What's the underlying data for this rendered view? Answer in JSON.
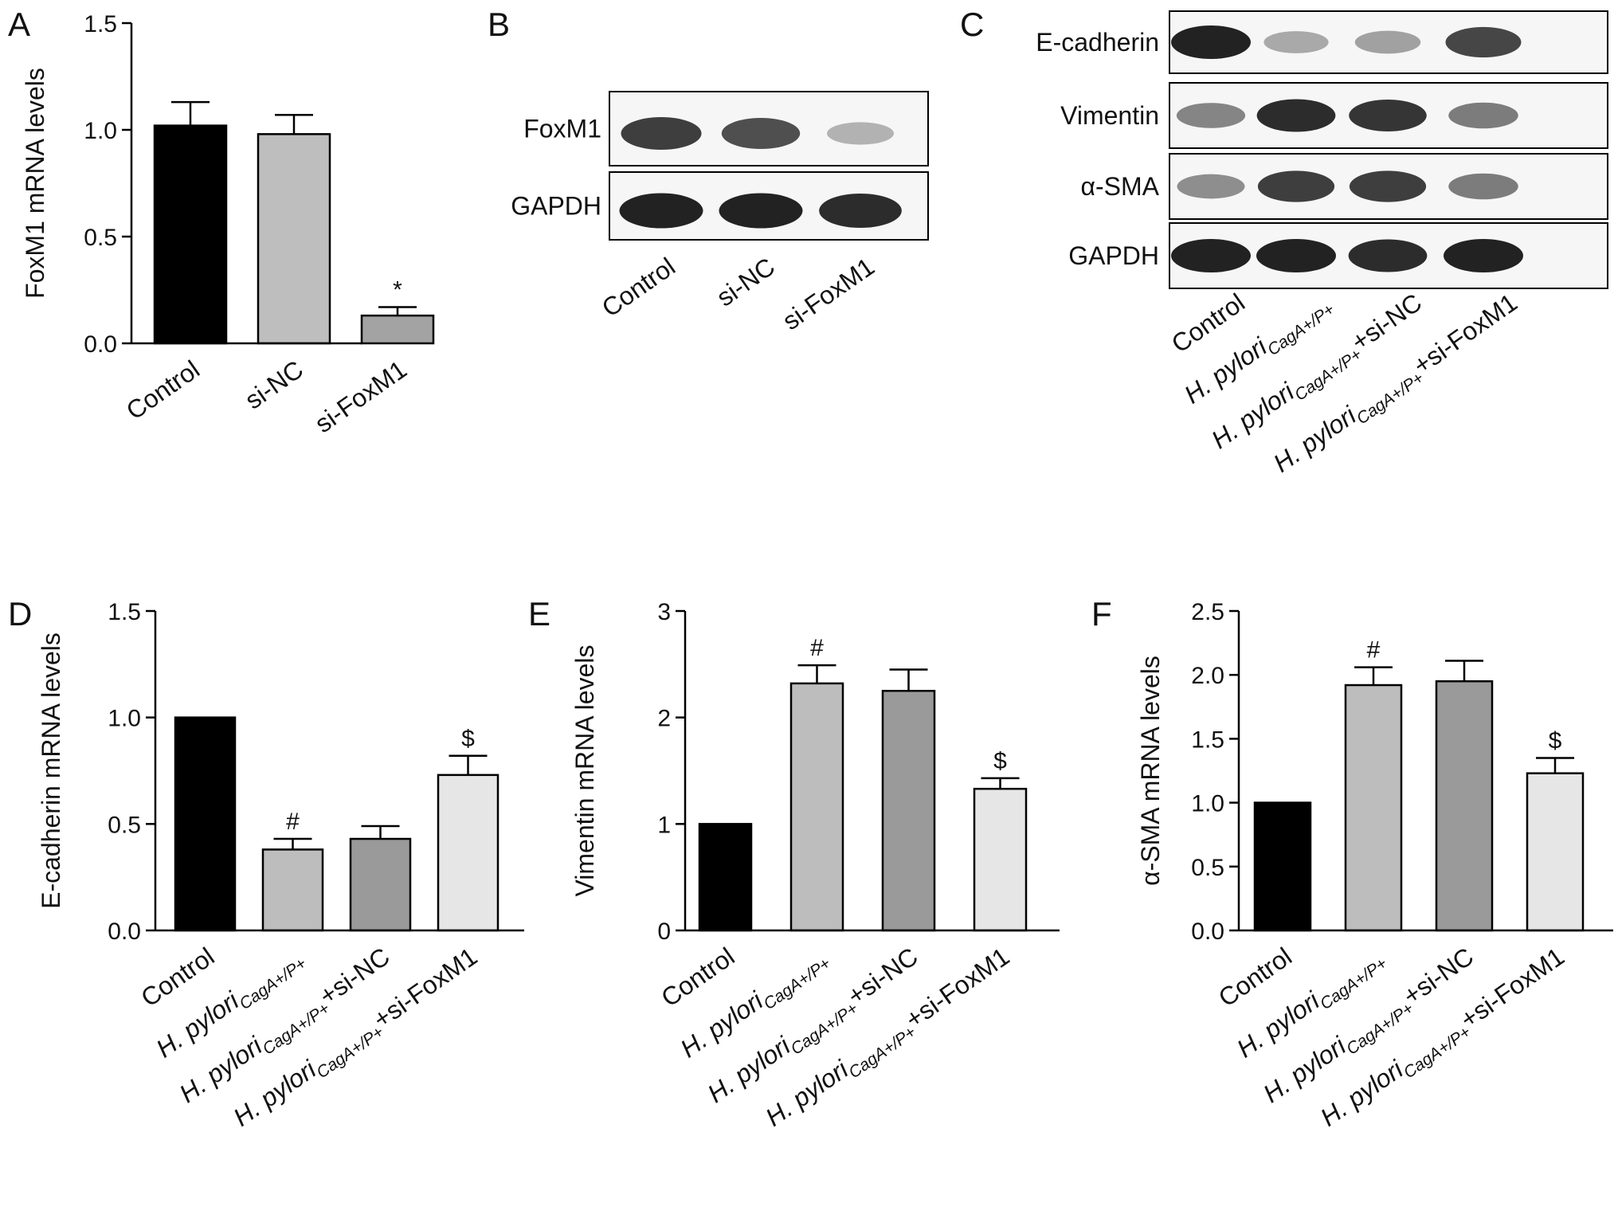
{
  "panel_letters": [
    "A",
    "B",
    "C",
    "D",
    "E",
    "F"
  ],
  "colors": {
    "control": "#000000",
    "group2": "#bdbdbd",
    "group3": "#9a9a9a",
    "group4": "#e6e6e6",
    "a_sinc": "#bebebe",
    "a_sifoxm1": "#a3a3a3",
    "band": "#222222"
  },
  "cat_labels": {
    "control": "Control",
    "si_nc": "si-NC",
    "si_foxm1": "si-FoxM1",
    "hpylori_main": "H. pylori",
    "hpylori_sub": "CagA+/P+",
    "plus_si_nc": "+si-NC",
    "plus_si_foxm1": "+si-FoxM1"
  },
  "blot_b": {
    "lanes": [
      "Control",
      "si-NC",
      "si-FoxM1"
    ],
    "rows": [
      {
        "label": "FoxM1",
        "intensity": [
          0.85,
          0.75,
          0.2
        ]
      },
      {
        "label": "GAPDH",
        "intensity": [
          1.0,
          1.0,
          0.95
        ]
      }
    ]
  },
  "blot_c": {
    "rows": [
      {
        "label": "E-cadherin",
        "intensity": [
          1.0,
          0.25,
          0.3,
          0.8
        ]
      },
      {
        "label": "Vimentin",
        "intensity": [
          0.45,
          0.95,
          0.9,
          0.5
        ]
      },
      {
        "label": "α-SMA",
        "intensity": [
          0.4,
          0.85,
          0.85,
          0.5
        ]
      },
      {
        "label": "GAPDH",
        "intensity": [
          1.0,
          1.0,
          0.95,
          1.0
        ]
      }
    ]
  },
  "chart_data": [
    {
      "panel": "A",
      "type": "bar",
      "ylabel": "FoxM1 mRNA levels",
      "ylim": [
        0,
        1.5
      ],
      "yticks": [
        "0.0",
        "0.5",
        "1.0",
        "1.5"
      ],
      "categories": [
        "Control",
        "si-NC",
        "si-FoxM1"
      ],
      "values": [
        1.02,
        0.98,
        0.13
      ],
      "errors": [
        0.11,
        0.09,
        0.04
      ],
      "annotations": [
        "",
        "",
        "*"
      ]
    },
    {
      "panel": "D",
      "type": "bar",
      "ylabel": "E-cadherin mRNA levels",
      "ylim": [
        0,
        1.5
      ],
      "yticks": [
        "0.0",
        "0.5",
        "1.0",
        "1.5"
      ],
      "categories": [
        "Control",
        "H. pylori CagA+/P+",
        "H. pylori CagA+/P+ +si-NC",
        "H. pylori CagA+/P+ +si-FoxM1"
      ],
      "values": [
        1.0,
        0.38,
        0.43,
        0.73
      ],
      "errors": [
        0,
        0.05,
        0.06,
        0.09
      ],
      "annotations": [
        "",
        "#",
        "",
        "$"
      ]
    },
    {
      "panel": "E",
      "type": "bar",
      "ylabel": "Vimentin mRNA levels",
      "ylim": [
        0,
        3
      ],
      "yticks": [
        "0",
        "1",
        "2",
        "3"
      ],
      "categories": [
        "Control",
        "H. pylori CagA+/P+",
        "H. pylori CagA+/P+ +si-NC",
        "H. pylori CagA+/P+ +si-FoxM1"
      ],
      "values": [
        1.0,
        2.32,
        2.25,
        1.33
      ],
      "errors": [
        0,
        0.17,
        0.2,
        0.1
      ],
      "annotations": [
        "",
        "#",
        "",
        "$"
      ]
    },
    {
      "panel": "F",
      "type": "bar",
      "ylabel": "α-SMA mRNA levels",
      "ylim": [
        0,
        2.5
      ],
      "yticks": [
        "0.0",
        "0.5",
        "1.0",
        "1.5",
        "2.0",
        "2.5"
      ],
      "categories": [
        "Control",
        "H. pylori CagA+/P+",
        "H. pylori CagA+/P+ +si-NC",
        "H. pylori CagA+/P+ +si-FoxM1"
      ],
      "values": [
        1.0,
        1.92,
        1.95,
        1.23
      ],
      "errors": [
        0,
        0.14,
        0.16,
        0.12
      ],
      "annotations": [
        "",
        "#",
        "",
        "$"
      ]
    }
  ]
}
